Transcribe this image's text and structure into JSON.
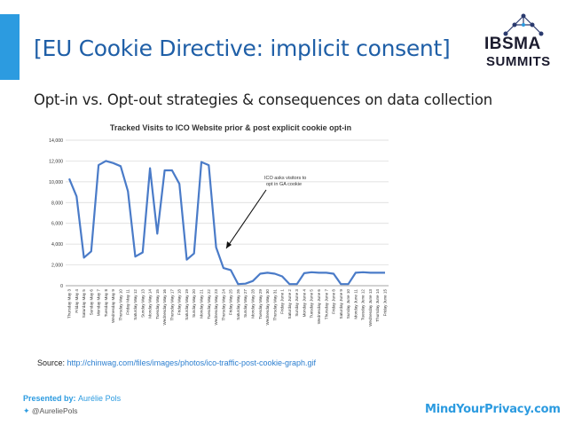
{
  "slide": {
    "title": "[EU Cookie Directive: implicit consent]",
    "subtitle": "Opt-in vs. Opt-out strategies & consequences on data collection",
    "source_label": "Source:",
    "source_url": "http://chinwag.com/files/images/photos/ico-traffic-post-cookie-graph.gif",
    "presented_label": "Presented by:",
    "presenter": "Aurélie Pols",
    "twitter": "@AureliePols",
    "site": "MindYourPrivacy.com",
    "logo": {
      "line1": "IBSMA",
      "line2": "SUMMITS",
      "icon": "molecule-logo-icon"
    },
    "accent_color": "#2c9be0",
    "title_color": "#1f5fa7"
  },
  "chart_data": {
    "type": "line",
    "title": "Tracked Visits to ICO Website prior & post explicit cookie opt-in",
    "annotation": "ICO asks visitors to opt in GA cookie",
    "ylim": [
      0,
      14000
    ],
    "yticks": [
      0,
      2000,
      4000,
      6000,
      8000,
      10000,
      12000,
      14000
    ],
    "ytick_labels": [
      "0",
      "2,000",
      "4,000",
      "6,000",
      "8,000",
      "10,000",
      "12,000",
      "14,000"
    ],
    "grid": true,
    "legend": "none",
    "line_color": "#4a7bc8",
    "categories": [
      "Thursday May 3",
      "Friday May 4",
      "Saturday May 5",
      "Sunday May 6",
      "Monday May 7",
      "Tuesday May 8",
      "Wednesday May 9",
      "Thursday May 10",
      "Friday May 11",
      "Saturday May 12",
      "Sunday May 13",
      "Monday May 14",
      "Tuesday May 15",
      "Wednesday May 16",
      "Thursday May 17",
      "Friday May 18",
      "Saturday May 19",
      "Sunday May 20",
      "Monday May 21",
      "Tuesday May 22",
      "Wednesday May 23",
      "Thursday May 24",
      "Friday May 25",
      "Saturday May 26",
      "Sunday May 27",
      "Monday May 28",
      "Tuesday May 29",
      "Wednesday May 30",
      "Thursday May 31",
      "Friday June 1",
      "Saturday June 2",
      "Sunday June 3",
      "Monday June 4",
      "Tuesday June 5",
      "Wednesday June 6",
      "Thursday June 7",
      "Friday June 8",
      "Saturday June 9",
      "Sunday June 10",
      "Monday June 11",
      "Tuesday June 12",
      "Wednesday June 13",
      "Thursday June 14",
      "Friday June 15"
    ],
    "series": [
      {
        "values": [
          10300,
          8600,
          2700,
          3300,
          11600,
          12000,
          11800,
          11500,
          9100,
          2800,
          3200,
          11300,
          5000,
          11100,
          11100,
          9800,
          2500,
          3100,
          11900,
          11600,
          3700,
          1700,
          1500,
          150,
          200,
          450,
          1150,
          1250,
          1150,
          900,
          150,
          150,
          1200,
          1300,
          1250,
          1250,
          1150,
          150,
          150,
          1250,
          1300,
          1250,
          1250,
          1250
        ]
      }
    ]
  }
}
